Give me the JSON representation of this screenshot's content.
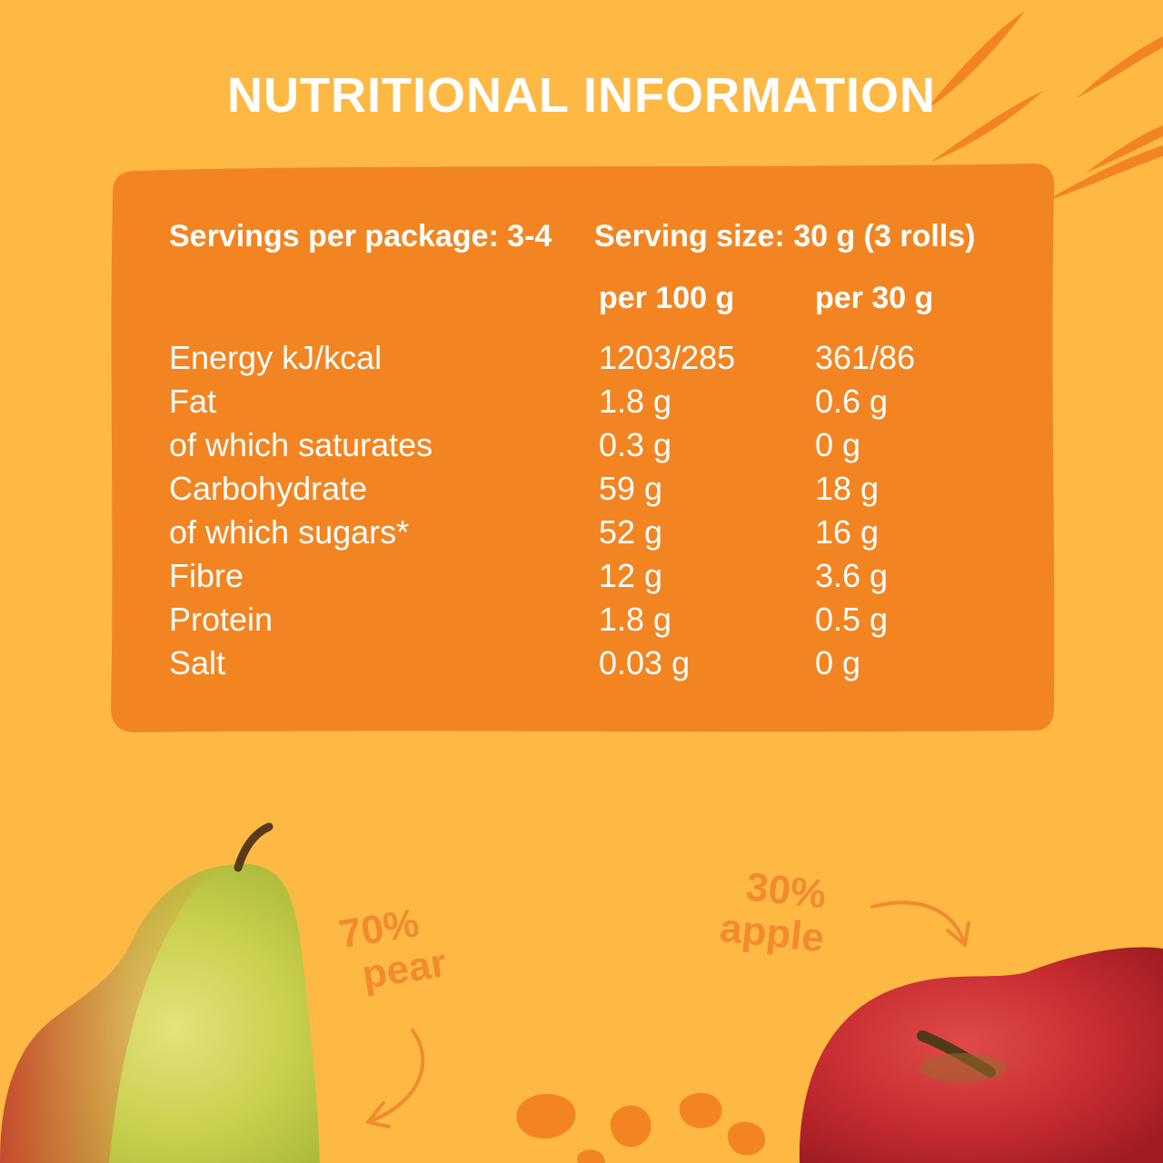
{
  "title": "NUTRITIONAL INFORMATION",
  "colors": {
    "background": "#FDB944",
    "panel": "#F28522",
    "accent_text": "#F28A2E",
    "text": "#FFFFFF"
  },
  "panel": {
    "servings_per_package": "Servings per package: 3-4",
    "serving_size": "Serving size: 30 g (3 rolls)",
    "column_headers": [
      "per 100 g",
      "per 30 g"
    ],
    "rows": [
      {
        "name": "Energy kJ/kcal",
        "per_100g": "1203/285",
        "per_30g": "361/86"
      },
      {
        "name": "Fat",
        "per_100g": "1.8 g",
        "per_30g": "0.6 g"
      },
      {
        "name": "of which saturates",
        "per_100g": "0.3 g",
        "per_30g": "0 g"
      },
      {
        "name": "Carbohydrate",
        "per_100g": "59 g",
        "per_30g": "18 g"
      },
      {
        "name": "of which sugars*",
        "per_100g": "52 g",
        "per_30g": "16 g"
      },
      {
        "name": "Fibre",
        "per_100g": "12 g",
        "per_30g": "3.6 g"
      },
      {
        "name": "Protein",
        "per_100g": "1.8 g",
        "per_30g": "0.5 g"
      },
      {
        "name": "Salt",
        "per_100g": "0.03 g",
        "per_30g": "0 g"
      }
    ]
  },
  "ingredients": {
    "pear_percent": "70%",
    "pear_name": "pear",
    "apple_percent": "30%",
    "apple_name": "apple"
  },
  "icons": [
    "pear-image",
    "apple-image",
    "leaf-strokes-icon",
    "arrow-icon",
    "fruit-pieces-icon"
  ]
}
